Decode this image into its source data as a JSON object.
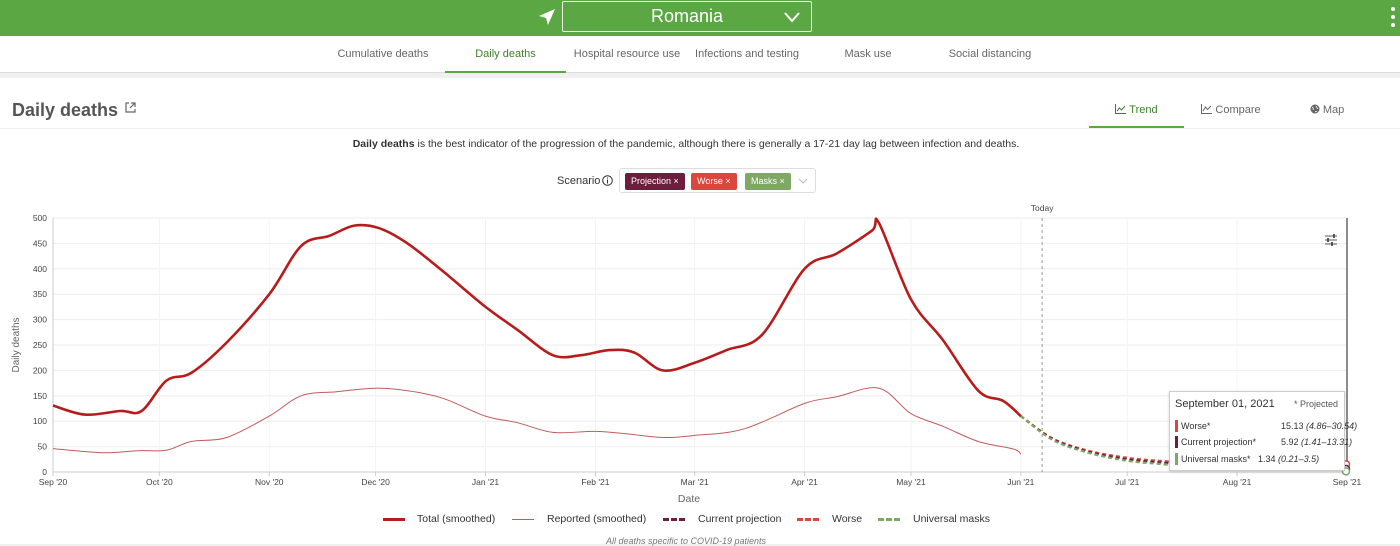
{
  "header": {
    "country": "Romania",
    "location_icon": "navigation-arrow-icon",
    "menu_icon": "vertical-dots-icon"
  },
  "tabs": [
    {
      "label": "Cumulative deaths",
      "active": false
    },
    {
      "label": "Daily deaths",
      "active": true
    },
    {
      "label": "Hospital resource use",
      "active": false
    },
    {
      "label": "Infections and testing",
      "active": false
    },
    {
      "label": "Mask use",
      "active": false
    },
    {
      "label": "Social distancing",
      "active": false
    }
  ],
  "card": {
    "title": "Daily deaths",
    "view_tabs": [
      {
        "label": "Trend",
        "icon": "line-chart-icon",
        "active": true
      },
      {
        "label": "Compare",
        "icon": "area-chart-icon",
        "active": false
      },
      {
        "label": "Map",
        "icon": "globe-icon",
        "active": false
      }
    ],
    "description_bold": "Daily deaths",
    "description_rest": " is the best indicator of the progression of the pandemic, although there is generally a 17-21 day lag between infection and deaths.",
    "scenario_label": "Scenario",
    "scenarios": [
      {
        "label": "Projection ×",
        "color": "#6b1f3c"
      },
      {
        "label": "Worse ×",
        "color": "#d9473f"
      },
      {
        "label": "Masks ×",
        "color": "#7fa865"
      }
    ]
  },
  "tooltip": {
    "date": "September 01, 2021",
    "projected_note": "* Projected",
    "rows": [
      {
        "name": "Worse*",
        "value": "15.13",
        "range": "(4.86–30.54)",
        "color": "#d9473f"
      },
      {
        "name": "Current projection*",
        "value": "5.92",
        "range": "(1.41–13.31)",
        "color": "#6b1f3c"
      },
      {
        "name": "Universal masks*",
        "value": "1.34",
        "range": "(0.21–3.5)",
        "color": "#7fa865"
      }
    ]
  },
  "legend": [
    {
      "label": "Total (smoothed)",
      "color": "#b71c1c",
      "style": "solid-thick"
    },
    {
      "label": "Reported (smoothed)",
      "color": "#c45a5a",
      "style": "solid-thin"
    },
    {
      "label": "Current projection",
      "color": "#6b1f3c",
      "style": "dashed"
    },
    {
      "label": "Worse",
      "color": "#d9473f",
      "style": "dashed"
    },
    {
      "label": "Universal masks",
      "color": "#7fa865",
      "style": "dashed"
    }
  ],
  "footnote": "All deaths specific to COVID-19 patients",
  "chart_data": {
    "type": "line",
    "xlabel": "Date",
    "ylabel": "Daily deaths",
    "ylim": [
      0,
      500
    ],
    "yticks": [
      0,
      50,
      100,
      150,
      200,
      250,
      300,
      350,
      400,
      450,
      500
    ],
    "xticks": [
      "Sep '20",
      "Oct '20",
      "Nov '20",
      "Dec '20",
      "Jan '21",
      "Feb '21",
      "Mar '21",
      "Apr '21",
      "May '21",
      "Jun '21",
      "Jul '21",
      "Aug '21",
      "Sep '21"
    ],
    "today_label": "Today",
    "today_x": "2021-06-07",
    "grid": true,
    "legend_position": "bottom",
    "series": [
      {
        "name": "Total (smoothed)",
        "x": [
          "2020-09-01",
          "2020-09-10",
          "2020-09-20",
          "2020-09-26",
          "2020-10-03",
          "2020-10-10",
          "2020-10-20",
          "2020-11-01",
          "2020-11-10",
          "2020-11-18",
          "2020-11-25",
          "2020-12-02",
          "2020-12-10",
          "2020-12-20",
          "2021-01-01",
          "2021-01-10",
          "2021-01-20",
          "2021-01-28",
          "2021-02-05",
          "2021-02-12",
          "2021-02-20",
          "2021-03-01",
          "2021-03-10",
          "2021-03-20",
          "2021-04-01",
          "2021-04-10",
          "2021-04-20",
          "2021-04-22",
          "2021-05-01",
          "2021-05-10",
          "2021-05-20",
          "2021-05-27",
          "2021-06-01"
        ],
        "y": [
          131,
          113,
          120,
          120,
          180,
          195,
          255,
          350,
          445,
          465,
          485,
          480,
          450,
          395,
          325,
          280,
          230,
          230,
          240,
          235,
          200,
          215,
          240,
          270,
          400,
          430,
          475,
          490,
          340,
          260,
          160,
          140,
          110
        ]
      },
      {
        "name": "Reported (smoothed)",
        "x": [
          "2020-09-01",
          "2020-09-15",
          "2020-09-25",
          "2020-10-03",
          "2020-10-10",
          "2020-10-20",
          "2020-11-01",
          "2020-11-10",
          "2020-11-20",
          "2020-12-01",
          "2020-12-10",
          "2020-12-20",
          "2021-01-01",
          "2021-01-10",
          "2021-01-20",
          "2021-02-01",
          "2021-02-10",
          "2021-02-20",
          "2021-03-01",
          "2021-03-15",
          "2021-04-01",
          "2021-04-10",
          "2021-04-22",
          "2021-05-01",
          "2021-05-10",
          "2021-05-20",
          "2021-05-30",
          "2021-06-01"
        ],
        "y": [
          46,
          38,
          42,
          43,
          60,
          68,
          110,
          150,
          158,
          165,
          160,
          145,
          110,
          97,
          78,
          80,
          75,
          68,
          72,
          85,
          135,
          148,
          165,
          115,
          90,
          60,
          45,
          35
        ]
      },
      {
        "name": "Current projection",
        "x": [
          "2021-06-01",
          "2021-06-10",
          "2021-06-20",
          "2021-07-01",
          "2021-07-10",
          "2021-07-15"
        ],
        "y": [
          110,
          65,
          40,
          25,
          19,
          16
        ]
      },
      {
        "name": "Worse",
        "x": [
          "2021-06-01",
          "2021-06-10",
          "2021-06-20",
          "2021-07-01",
          "2021-07-10",
          "2021-07-15"
        ],
        "y": [
          110,
          66,
          42,
          28,
          22,
          20
        ]
      },
      {
        "name": "Universal masks",
        "x": [
          "2021-06-01",
          "2021-06-10",
          "2021-06-20",
          "2021-07-01",
          "2021-07-10",
          "2021-07-15"
        ],
        "y": [
          110,
          63,
          38,
          22,
          16,
          13
        ]
      }
    ]
  }
}
